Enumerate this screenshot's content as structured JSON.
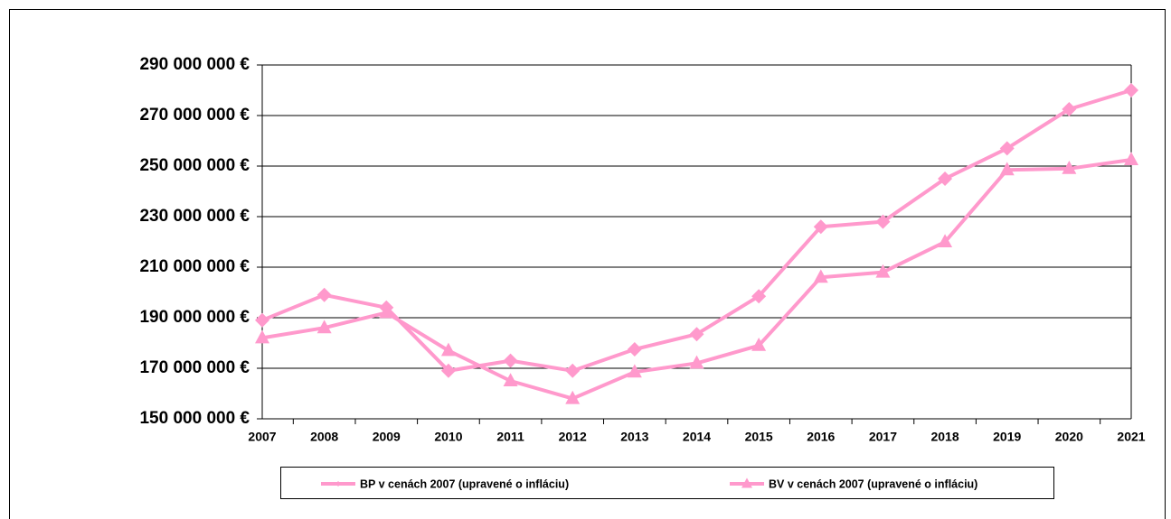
{
  "chart_data": {
    "type": "line",
    "categories": [
      "2007",
      "2008",
      "2009",
      "2010",
      "2011",
      "2012",
      "2013",
      "2014",
      "2015",
      "2016",
      "2017",
      "2018",
      "2019",
      "2020",
      "2021"
    ],
    "series": [
      {
        "name": "BP v cenách 2007 (upravené o infláciu)",
        "color": "#ff99cc",
        "marker": "diamond",
        "values": [
          189000000,
          199000000,
          194000000,
          169000000,
          173000000,
          169000000,
          177500000,
          183500000,
          198500000,
          226000000,
          228000000,
          245000000,
          257000000,
          272500000,
          280000000
        ]
      },
      {
        "name": "BV v cenách 2007 (upravené o infláciu)",
        "color": "#ff99cc",
        "marker": "triangle",
        "values": [
          182000000,
          186000000,
          192000000,
          177000000,
          165000000,
          158000000,
          168500000,
          172000000,
          179000000,
          206000000,
          208000000,
          220000000,
          248500000,
          249000000,
          252500000
        ]
      }
    ],
    "ylim": [
      150000000,
      290000000
    ],
    "yticks": [
      {
        "value": 150000000,
        "label": "150 000 000 €"
      },
      {
        "value": 170000000,
        "label": "170 000 000 €"
      },
      {
        "value": 190000000,
        "label": "190 000 000 €"
      },
      {
        "value": 210000000,
        "label": "210 000 000 €"
      },
      {
        "value": 230000000,
        "label": "230 000 000 €"
      },
      {
        "value": 250000000,
        "label": "250 000 000 €"
      },
      {
        "value": 270000000,
        "label": "270 000 000 €"
      },
      {
        "value": 290000000,
        "label": "290 000 000 €"
      }
    ],
    "grid": true,
    "legend": "bottom"
  }
}
